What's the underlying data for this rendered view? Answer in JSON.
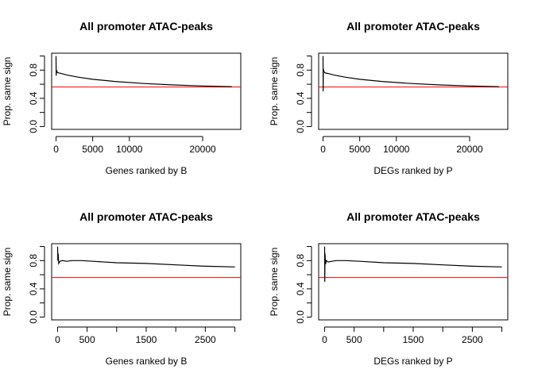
{
  "chart_data": [
    {
      "type": "line",
      "title": "All promoter ATAC-peaks",
      "xlabel": "Genes ranked by B",
      "ylabel": "Prop. same sign",
      "xlim": [
        -600,
        25200
      ],
      "ylim": [
        -0.04,
        1.04
      ],
      "xticks": [
        0,
        5000,
        10000,
        20000
      ],
      "xtick_labels": [
        "0",
        "5000",
        "10000",
        "20000"
      ],
      "yticks": [
        0.0,
        0.2,
        0.4,
        0.6,
        0.8,
        1.0
      ],
      "ytick_labels": [
        "0.0",
        "",
        "0.4",
        "",
        "0.8",
        ""
      ],
      "reference_line": {
        "y": 0.56,
        "color": "#ff0000"
      },
      "series": [
        {
          "color": "#000000",
          "x": [
            1,
            20,
            60,
            150,
            400,
            800,
            1500,
            3000,
            5000,
            8000,
            12000,
            16000,
            20000,
            24000
          ],
          "y": [
            1.0,
            0.72,
            0.8,
            0.77,
            0.76,
            0.75,
            0.73,
            0.7,
            0.67,
            0.64,
            0.61,
            0.59,
            0.575,
            0.565
          ]
        }
      ]
    },
    {
      "type": "line",
      "title": "All promoter ATAC-peaks",
      "xlabel": "DEGs ranked by P",
      "ylabel": "Prop. same sign",
      "xlim": [
        -600,
        25200
      ],
      "ylim": [
        -0.04,
        1.04
      ],
      "xticks": [
        0,
        5000,
        10000,
        20000
      ],
      "xtick_labels": [
        "0",
        "5000",
        "10000",
        "20000"
      ],
      "yticks": [
        0.0,
        0.2,
        0.4,
        0.6,
        0.8,
        1.0
      ],
      "ytick_labels": [
        "0.0",
        "",
        "0.4",
        "",
        "0.8",
        ""
      ],
      "reference_line": {
        "y": 0.56,
        "color": "#ff0000"
      },
      "series": [
        {
          "color": "#000000",
          "x": [
            1,
            15,
            40,
            100,
            300,
            800,
            1500,
            3000,
            5000,
            8000,
            12000,
            16000,
            20000,
            24000
          ],
          "y": [
            1.0,
            0.5,
            0.82,
            0.78,
            0.76,
            0.75,
            0.73,
            0.7,
            0.67,
            0.64,
            0.61,
            0.59,
            0.575,
            0.565
          ]
        }
      ]
    },
    {
      "type": "line",
      "title": "All promoter ATAC-peaks",
      "xlabel": "Genes ranked by B",
      "ylabel": "Prop. same sign",
      "xlim": [
        -100,
        3100
      ],
      "ylim": [
        -0.04,
        1.04
      ],
      "xticks": [
        0,
        500,
        1000,
        1500,
        2000,
        2500,
        3000
      ],
      "xtick_labels": [
        "0",
        "500",
        "",
        "1500",
        "",
        "2500",
        ""
      ],
      "yticks": [
        0.0,
        0.2,
        0.4,
        0.6,
        0.8,
        1.0
      ],
      "ytick_labels": [
        "0.0",
        "",
        "0.4",
        "",
        "0.8",
        ""
      ],
      "reference_line": {
        "y": 0.56,
        "color": "#ff0000"
      },
      "series": [
        {
          "color": "#000000",
          "x": [
            1,
            5,
            10,
            20,
            40,
            80,
            150,
            250,
            400,
            600,
            1000,
            1500,
            2000,
            2500,
            3000
          ],
          "y": [
            1.0,
            0.8,
            0.9,
            0.76,
            0.79,
            0.8,
            0.79,
            0.8,
            0.8,
            0.79,
            0.77,
            0.76,
            0.74,
            0.72,
            0.71
          ]
        }
      ]
    },
    {
      "type": "line",
      "title": "All promoter ATAC-peaks",
      "xlabel": "DEGs ranked by P",
      "ylabel": "Prop. same sign",
      "xlim": [
        -100,
        3100
      ],
      "ylim": [
        -0.04,
        1.04
      ],
      "xticks": [
        0,
        500,
        1000,
        1500,
        2000,
        2500,
        3000
      ],
      "xtick_labels": [
        "0",
        "500",
        "",
        "1500",
        "",
        "2500",
        ""
      ],
      "yticks": [
        0.0,
        0.2,
        0.4,
        0.6,
        0.8,
        1.0
      ],
      "ytick_labels": [
        "0.0",
        "",
        "0.4",
        "",
        "0.8",
        ""
      ],
      "reference_line": {
        "y": 0.56,
        "color": "#ff0000"
      },
      "series": [
        {
          "color": "#000000",
          "x": [
            1,
            4,
            8,
            15,
            30,
            60,
            120,
            200,
            350,
            600,
            1000,
            1500,
            2000,
            2500,
            3000
          ],
          "y": [
            1.0,
            0.5,
            0.9,
            0.75,
            0.8,
            0.78,
            0.79,
            0.8,
            0.8,
            0.79,
            0.77,
            0.76,
            0.74,
            0.72,
            0.71
          ]
        }
      ]
    }
  ]
}
